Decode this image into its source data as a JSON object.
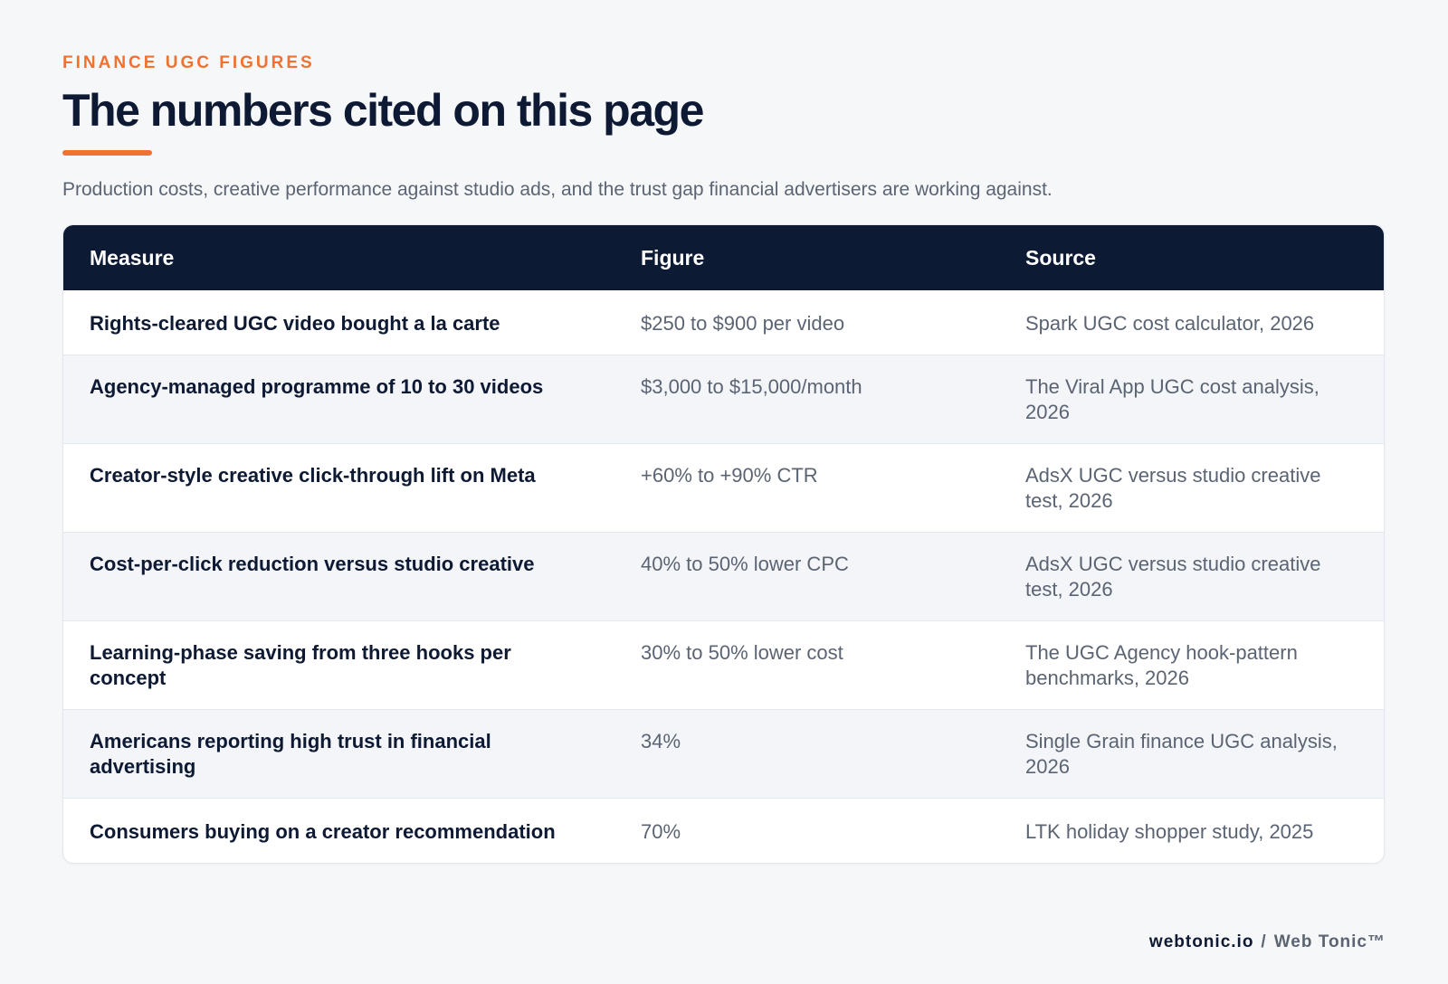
{
  "header": {
    "eyebrow": "FINANCE UGC FIGURES",
    "title": "The numbers cited on this page",
    "subtitle": "Production costs, creative performance against studio ads, and the trust gap financial advertisers are working against."
  },
  "table": {
    "columns": [
      "Measure",
      "Figure",
      "Source"
    ],
    "rows": [
      {
        "measure": "Rights-cleared UGC video bought a la carte",
        "figure": "$250 to $900 per video",
        "source": "Spark UGC cost calculator, 2026"
      },
      {
        "measure": "Agency-managed programme of 10 to 30 videos",
        "figure": "$3,000 to $15,000/month",
        "source": "The Viral App UGC cost analysis, 2026"
      },
      {
        "measure": "Creator-style creative click-through lift on Meta",
        "figure": "+60% to +90% CTR",
        "source": "AdsX UGC versus studio creative test, 2026"
      },
      {
        "measure": "Cost-per-click reduction versus studio creative",
        "figure": "40% to 50% lower CPC",
        "source": "AdsX UGC versus studio creative test, 2026"
      },
      {
        "measure": "Learning-phase saving from three hooks per concept",
        "figure": "30% to 50% lower cost",
        "source": "The UGC Agency hook-pattern benchmarks, 2026"
      },
      {
        "measure": "Americans reporting high trust in financial advertising",
        "figure": "34%",
        "source": "Single Grain finance UGC analysis, 2026"
      },
      {
        "measure": "Consumers buying on a creator recommendation",
        "figure": "70%",
        "source": "LTK holiday shopper study, 2025"
      }
    ]
  },
  "footer": {
    "domain": "webtonic.io",
    "separator": "/",
    "brand": "Web Tonic™"
  },
  "colors": {
    "accent": "#f07230",
    "navy": "#0c1a34",
    "muted_text": "#5b6473",
    "background": "#f6f7f9"
  }
}
